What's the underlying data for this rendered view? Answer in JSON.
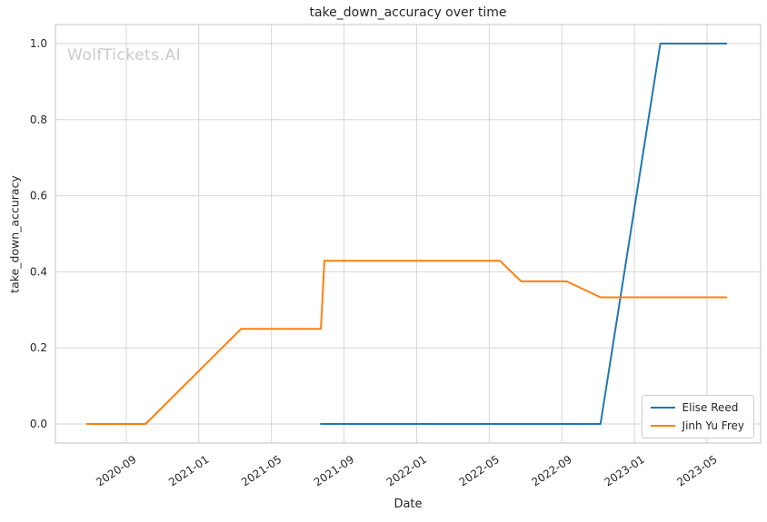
{
  "colors": {
    "background": "#ffffff",
    "grid": "#d6d6d6",
    "frame": "#cccccc",
    "text": "#262626",
    "watermark": "#c9c9c9",
    "series_blue": "#1f77b4",
    "series_orange": "#ff7f0e"
  },
  "chart_data": {
    "type": "line",
    "title": "take_down_accuracy over time",
    "xlabel": "Date",
    "ylabel": "take_down_accuracy",
    "watermark": "WolfTickets.AI",
    "grid": true,
    "legend_position": "lower right",
    "x_tick_labels": [
      "2020-09",
      "2021-01",
      "2021-05",
      "2021-09",
      "2022-01",
      "2022-05",
      "2022-09",
      "2023-01",
      "2023-05"
    ],
    "y_tick_labels": [
      "0.0",
      "0.2",
      "0.4",
      "0.6",
      "0.8",
      "1.0"
    ],
    "y_tick_values": [
      0,
      0.2,
      0.4,
      0.6,
      0.8,
      1.0
    ],
    "xlim": [
      "2020-05-04",
      "2023-07-30"
    ],
    "ylim": [
      -0.05,
      1.05
    ],
    "series": [
      {
        "name": "Elise Reed",
        "color": "#1f77b4",
        "points": [
          [
            "2021-07-22",
            0.0
          ],
          [
            "2022-11-05",
            0.0
          ],
          [
            "2023-02-14",
            1.0
          ],
          [
            "2023-06-04",
            1.0
          ]
        ]
      },
      {
        "name": "Jinh Yu Frey",
        "color": "#ff7f0e",
        "points": [
          [
            "2020-06-25",
            0.0
          ],
          [
            "2020-10-03",
            0.0
          ],
          [
            "2021-03-11",
            0.25
          ],
          [
            "2021-07-23",
            0.25
          ],
          [
            "2021-07-29",
            0.429
          ],
          [
            "2022-05-19",
            0.429
          ],
          [
            "2022-06-24",
            0.375
          ],
          [
            "2022-09-09",
            0.375
          ],
          [
            "2022-11-05",
            0.333
          ],
          [
            "2023-06-04",
            0.333
          ]
        ]
      }
    ]
  }
}
